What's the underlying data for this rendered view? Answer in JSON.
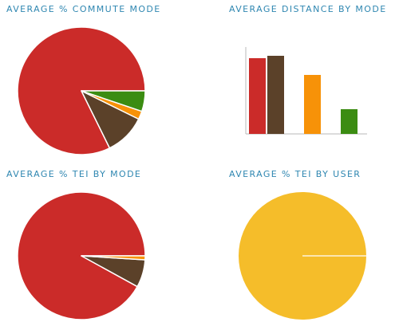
{
  "colors": {
    "title": "#2f87b1",
    "red": "#cb2b29",
    "brown": "#5b4129",
    "orange": "#f79208",
    "green": "#3b8c12",
    "yellow": "#f5bd2a",
    "axis": "#b8b8b8"
  },
  "chart_data": [
    {
      "type": "pie",
      "title": "AVERAGE % COMMUTE MODE",
      "slices": [
        {
          "value": 79,
          "color": "#cb2b29"
        },
        {
          "value": 10,
          "color": "#5b4129"
        },
        {
          "value": 2,
          "color": "#f79208"
        },
        {
          "value": 5,
          "color": "#3b8c12"
        }
      ]
    },
    {
      "type": "bar",
      "title": "AVERAGE DISTANCE BY MODE",
      "categories": [
        "",
        "",
        "",
        ""
      ],
      "values": [
        9.5,
        9.8,
        7.4,
        3.1
      ],
      "colors": [
        "#cb2b29",
        "#5b4129",
        "#f79208",
        "#3b8c12"
      ],
      "ylim": [
        0,
        11
      ]
    },
    {
      "type": "pie",
      "title": "AVERAGE % TEI BY MODE",
      "slices": [
        {
          "value": 92,
          "color": "#cb2b29"
        },
        {
          "value": 7,
          "color": "#5b4129"
        },
        {
          "value": 1,
          "color": "#f79208"
        }
      ]
    },
    {
      "type": "pie",
      "title": "AVERAGE % TEI BY USER",
      "slices": [
        {
          "value": 100,
          "color": "#f5bd2a"
        }
      ]
    }
  ]
}
